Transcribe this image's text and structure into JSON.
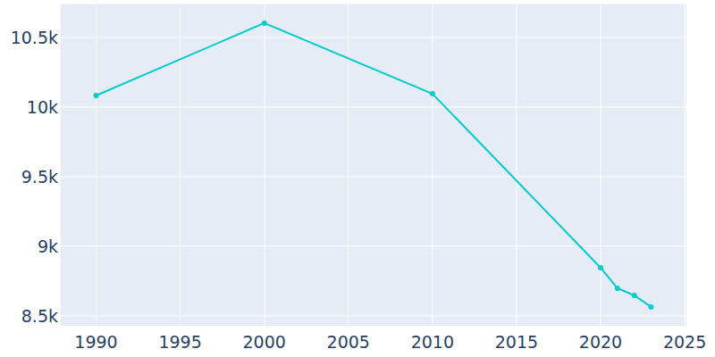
{
  "chart_data": {
    "type": "line",
    "x": [
      1990,
      2000,
      2010,
      2020,
      2021,
      2022,
      2023
    ],
    "values": [
      10083,
      10603,
      10096,
      8846,
      8699,
      8647,
      8564
    ],
    "color": "#00cccc",
    "marker": "circle",
    "xlim": [
      1987.9,
      2025.1
    ],
    "ylim": [
      8429,
      10737
    ],
    "xticks": [
      1990,
      1995,
      2000,
      2005,
      2010,
      2015,
      2020,
      2025
    ],
    "yticks": [
      {
        "value": 8500,
        "label": "8.5k"
      },
      {
        "value": 9000,
        "label": "9k"
      },
      {
        "value": 9500,
        "label": "9.5k"
      },
      {
        "value": 10000,
        "label": "10k"
      },
      {
        "value": 10500,
        "label": "10.5k"
      }
    ],
    "grid": true
  }
}
